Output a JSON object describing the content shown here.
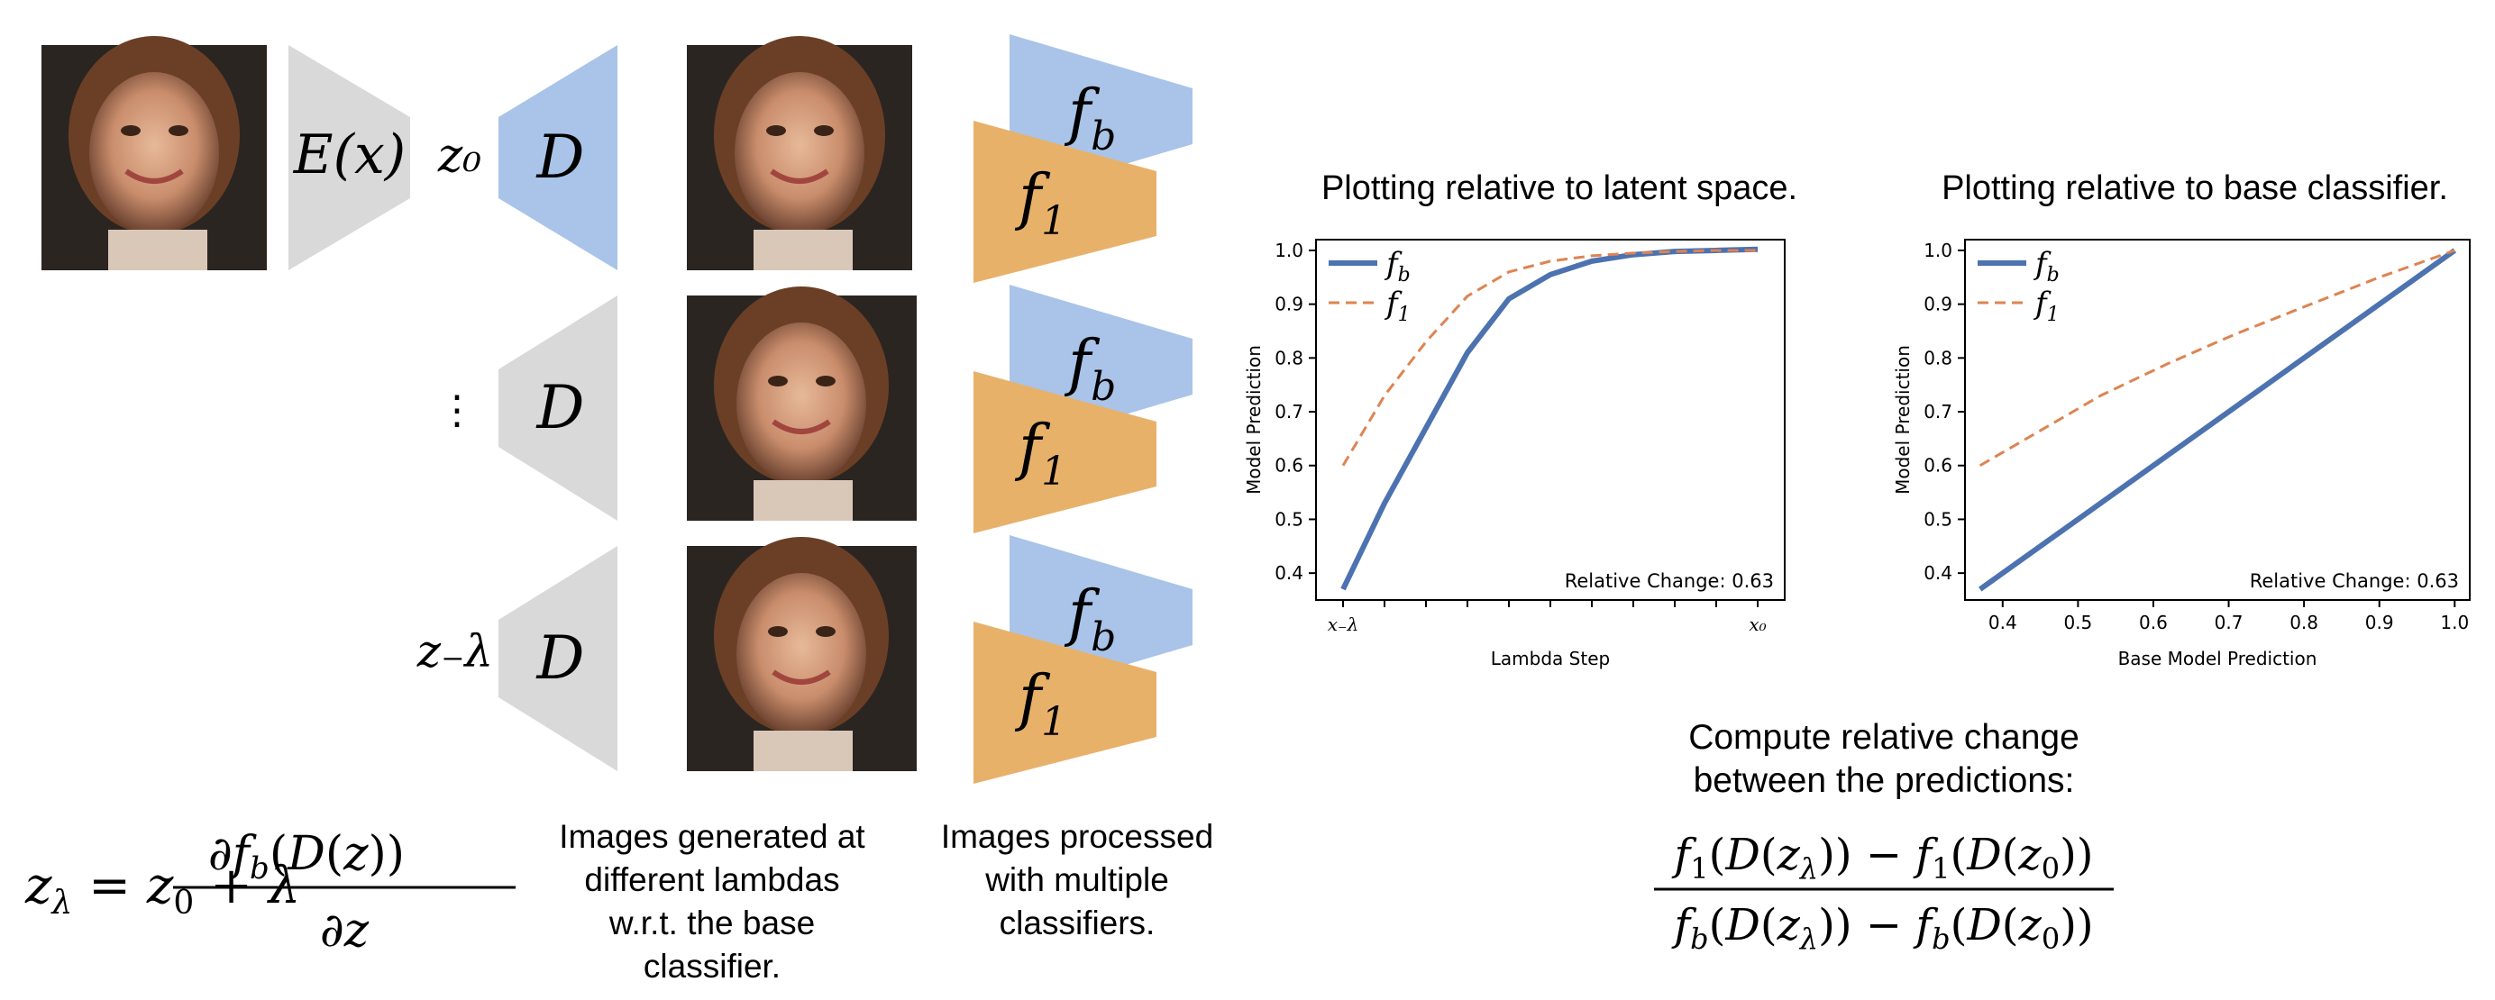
{
  "pipeline": {
    "encoder_label": "E(x)",
    "latent_top": "z₀",
    "latent_mid": "⋮",
    "latent_bottom": "z₋λ",
    "decoder_label": "D",
    "classifier_base": "f",
    "classifier_base_sub": "b",
    "classifier_one": "f",
    "classifier_one_sub": "1"
  },
  "captions": {
    "images_generated": [
      "Images generated at",
      "different lambdas",
      "w.r.t. the base",
      "classifier."
    ],
    "images_processed": [
      "Images processed",
      "with multiple",
      "classifiers."
    ],
    "compute_change": [
      "Compute relative change",
      "between the predictions:"
    ]
  },
  "colors": {
    "decoder_blue": "#a9c4e8",
    "decoder_gray": "#d9d9d9",
    "classifier_orange": "#e8b16a",
    "line_blue": "#4c72b0",
    "line_orange": "#dd8452"
  },
  "equations": {
    "update_rule": "zλ = z₀ + λ ∂f_b(D(z)) / ∂z",
    "relative_change": "(f₁(D(zλ)) − f₁(D(z₀))) / (f_b(D(zλ)) − f_b(D(z₀)))"
  },
  "chart_data": [
    {
      "type": "line",
      "title": "Plotting relative to latent space.",
      "xlabel": "Lambda Step",
      "ylabel": "Model Prediction",
      "x_tick_labels": [
        "x₋λ",
        "x₀"
      ],
      "ylim": [
        0.35,
        1.02
      ],
      "yticks": [
        "0.4",
        "0.5",
        "0.6",
        "0.7",
        "0.8",
        "0.9",
        "1.0"
      ],
      "x": [
        0,
        1,
        2,
        3,
        4,
        5,
        6,
        7,
        8,
        9,
        10
      ],
      "series": [
        {
          "name": "f_b",
          "style": "solid",
          "values": [
            0.37,
            0.53,
            0.67,
            0.81,
            0.91,
            0.955,
            0.98,
            0.992,
            0.998,
            1.0,
            1.002
          ]
        },
        {
          "name": "f_1",
          "style": "dashed",
          "values": [
            0.6,
            0.73,
            0.83,
            0.915,
            0.96,
            0.98,
            0.99,
            0.995,
            0.998,
            1.0,
            1.0
          ]
        }
      ],
      "annotation": "Relative Change: 0.63",
      "legend": "top-left"
    },
    {
      "type": "line",
      "title": "Plotting relative to base classifier.",
      "xlabel": "Base Model Prediction",
      "ylabel": "Model Prediction",
      "xticks": [
        "0.4",
        "0.5",
        "0.6",
        "0.7",
        "0.8",
        "0.9",
        "1.0"
      ],
      "xlim": [
        0.35,
        1.02
      ],
      "ylim": [
        0.35,
        1.02
      ],
      "yticks": [
        "0.4",
        "0.5",
        "0.6",
        "0.7",
        "0.8",
        "0.9",
        "1.0"
      ],
      "series": [
        {
          "name": "f_b",
          "style": "solid",
          "x": [
            0.37,
            1.0
          ],
          "values": [
            0.37,
            1.0
          ]
        },
        {
          "name": "f_1",
          "style": "dashed",
          "x": [
            0.37,
            0.45,
            0.53,
            0.62,
            0.71,
            0.8,
            0.9,
            1.0
          ],
          "values": [
            0.6,
            0.665,
            0.73,
            0.79,
            0.845,
            0.895,
            0.95,
            1.0
          ]
        }
      ],
      "annotation": "Relative Change: 0.63",
      "legend": "top-left"
    }
  ]
}
